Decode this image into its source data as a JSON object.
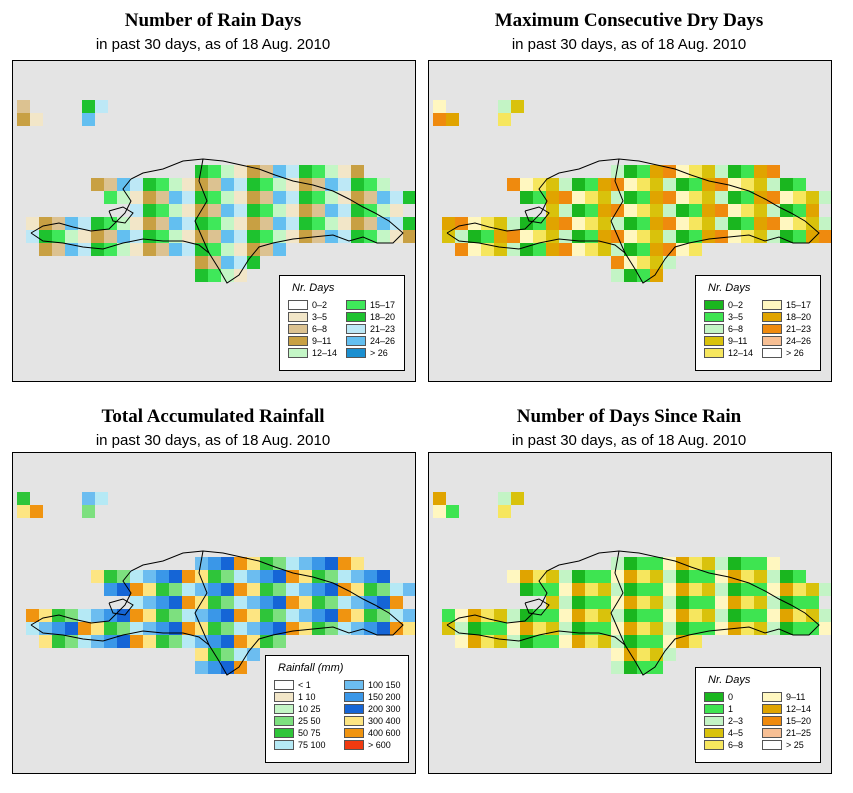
{
  "panels": [
    {
      "id": "rain_days",
      "title": "Number of Rain Days",
      "subtitle": "in past 30 days, as of  18 Aug. 2010",
      "legend_title": "Nr. Days",
      "legend_items": [
        {
          "label": "0–2",
          "color": "#ffffff"
        },
        {
          "label": "3–5",
          "color": "#f2e6c8"
        },
        {
          "label": "6–8",
          "color": "#dcc291"
        },
        {
          "label": "9–11",
          "color": "#c8a043"
        },
        {
          "label": "12–14",
          "color": "#c4f6c6"
        },
        {
          "label": "15–17",
          "color": "#3fe85a"
        },
        {
          "label": "18–20",
          "color": "#1ec22f"
        },
        {
          "label": "21–23",
          "color": "#bde8f6"
        },
        {
          "label": "24–26",
          "color": "#63bff0"
        },
        {
          "label": "> 26",
          "color": "#1b8fd0"
        }
      ]
    },
    {
      "id": "max_dry_days",
      "title": "Maximum Consecutive Dry Days",
      "subtitle": "in past 30 days, as of  18 Aug. 2010",
      "legend_title": "Nr. Days",
      "legend_items": [
        {
          "label": "0–2",
          "color": "#1ab61f"
        },
        {
          "label": "3–5",
          "color": "#3ee451"
        },
        {
          "label": "6–8",
          "color": "#c3f4c5"
        },
        {
          "label": "9–11",
          "color": "#d9c20c"
        },
        {
          "label": "12–14",
          "color": "#f6e65e"
        },
        {
          "label": "15–17",
          "color": "#fff7c0"
        },
        {
          "label": "18–20",
          "color": "#e0a400"
        },
        {
          "label": "21–23",
          "color": "#ef8a0e"
        },
        {
          "label": "24–26",
          "color": "#f7bf94"
        },
        {
          "label": "> 26",
          "color": "#ffffff"
        }
      ]
    },
    {
      "id": "total_rainfall",
      "title": "Total Accumulated Rainfall",
      "subtitle": "in past 30 days, as of  18 Aug. 2010",
      "legend_title": "Rainfall (mm)",
      "legend_items": [
        {
          "label": "< 1",
          "color": "#ffffff"
        },
        {
          "label": "1   10",
          "color": "#f2e6c8"
        },
        {
          "label": "10   25",
          "color": "#c4f6c6"
        },
        {
          "label": "25   50",
          "color": "#7de07f"
        },
        {
          "label": "50   75",
          "color": "#2fc53a"
        },
        {
          "label": "75   100",
          "color": "#b5e9f5"
        },
        {
          "label": "100   150",
          "color": "#6cbdf0"
        },
        {
          "label": "150   200",
          "color": "#3a97e8"
        },
        {
          "label": "200   300",
          "color": "#1565d6"
        },
        {
          "label": "300   400",
          "color": "#fde582"
        },
        {
          "label": "400   600",
          "color": "#f09410"
        },
        {
          "label": "> 600",
          "color": "#f03a10"
        }
      ]
    },
    {
      "id": "days_since_rain",
      "title": "Number of Days Since Rain",
      "subtitle": "in past 30 days, as of  18 Aug. 2010",
      "legend_title": "Nr. Days",
      "legend_items": [
        {
          "label": "0",
          "color": "#1ab61f"
        },
        {
          "label": "1",
          "color": "#3ee451"
        },
        {
          "label": "2–3",
          "color": "#c3f4c5"
        },
        {
          "label": "4–5",
          "color": "#d9c20c"
        },
        {
          "label": "6–8",
          "color": "#f6e65e"
        },
        {
          "label": "9–11",
          "color": "#fff7c0"
        },
        {
          "label": "12–14",
          "color": "#e0a400"
        },
        {
          "label": "15–20",
          "color": "#ef8a0e"
        },
        {
          "label": "21–25",
          "color": "#f7bf94"
        },
        {
          "label": "> 25",
          "color": "#ffffff"
        }
      ]
    }
  ],
  "grid_colors": {
    "rain_days": [
      "#c4f6c6",
      "#3fe85a",
      "#1ec22f",
      "#bde8f6",
      "#63bff0",
      "#dcc291",
      "#c8a043",
      "#f2e6c8"
    ],
    "max_dry_days": [
      "#3ee451",
      "#1ab61f",
      "#c3f4c5",
      "#d9c20c",
      "#f6e65e",
      "#fff7c0",
      "#ef8a0e",
      "#e0a400"
    ],
    "total_rainfall": [
      "#1565d6",
      "#3a97e8",
      "#6cbdf0",
      "#b5e9f5",
      "#7de07f",
      "#2fc53a",
      "#fde582",
      "#f09410"
    ],
    "days_since_rain": [
      "#3ee451",
      "#1ab61f",
      "#c3f4c5",
      "#d9c20c",
      "#f6e65e",
      "#e0a400",
      "#fff7c0",
      "#3ee451"
    ]
  }
}
